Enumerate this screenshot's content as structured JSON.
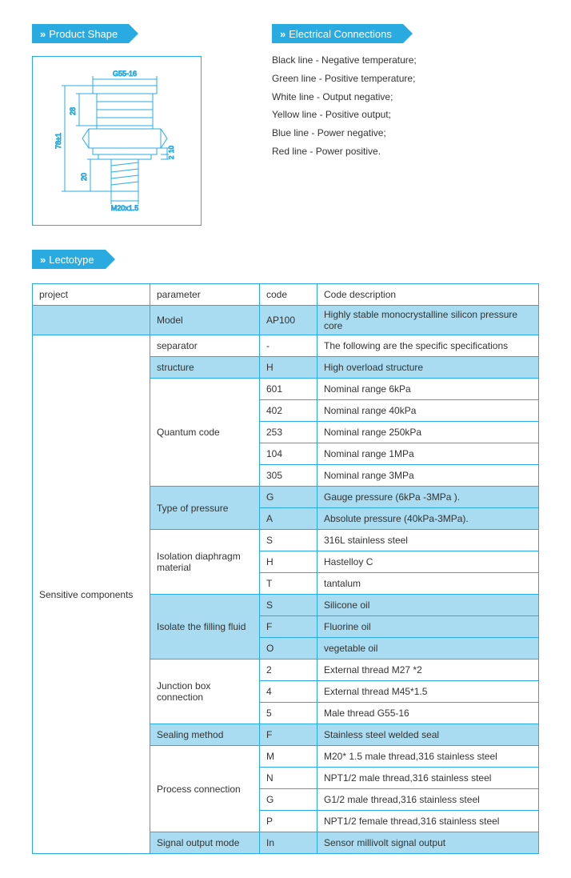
{
  "headers": {
    "productShape": "Product Shape",
    "electricalConnections": "Electrical Connections",
    "lectotype": "Lectotype"
  },
  "connections": [
    "Black line - Negative temperature;",
    "Green line - Positive temperature;",
    "White line - Output negative;",
    "Yellow line - Positive output;",
    "Blue line - Power negative;",
    "Red line - Power positive."
  ],
  "sketch": {
    "topLabel": "G55-16",
    "leftOuter": "78±1",
    "leftInner": "28",
    "rightSmall1": "10",
    "rightSmall2": "2",
    "rightBottom": "20",
    "bottomLabel": "M20x1.5"
  },
  "tableHeader": {
    "project": "project",
    "parameter": "parameter",
    "code": "code",
    "description": "Code description"
  },
  "rows": [
    {
      "shaded": true,
      "project": "",
      "param": "Model",
      "code": "AP100",
      "desc": "Highly stable monocrystalline silicon pressure core"
    },
    {
      "project_start": true,
      "project": "Sensitive components",
      "project_rowspan": 22,
      "param": "separator",
      "code": "-",
      "desc": "The following are the specific specifications"
    },
    {
      "shaded": true,
      "param": "structure",
      "code": "H",
      "desc": "High overload structure"
    },
    {
      "param": "Quantum code",
      "param_rowspan": 5,
      "code": "601",
      "desc": "Nominal range 6kPa"
    },
    {
      "code": "402",
      "desc": "Nominal range 40kPa"
    },
    {
      "code": "253",
      "desc": "Nominal range 250kPa"
    },
    {
      "code": "104",
      "desc": "Nominal range 1MPa"
    },
    {
      "code": "305",
      "desc": "Nominal range 3MPa"
    },
    {
      "shaded": true,
      "param": "Type of pressure",
      "param_rowspan": 2,
      "code": "G",
      "desc": "Gauge pressure (6kPa -3MPa )."
    },
    {
      "shaded": true,
      "code": "A",
      "desc": "Absolute pressure (40kPa-3MPa)."
    },
    {
      "param": "Isolation diaphragm material",
      "param_rowspan": 3,
      "code": "S",
      "desc": "316L stainless steel"
    },
    {
      "code": "H",
      "desc": "Hastelloy C"
    },
    {
      "code": "T",
      "desc": "tantalum"
    },
    {
      "shaded": true,
      "param": "Isolate the filling fluid",
      "param_rowspan": 3,
      "code": "S",
      "desc": "Silicone oil"
    },
    {
      "shaded": true,
      "code": "F",
      "desc": "Fluorine oil"
    },
    {
      "shaded": true,
      "code": "O",
      "desc": "vegetable oil"
    },
    {
      "param": "Junction box connection",
      "param_rowspan": 3,
      "code": "2",
      "desc": "External thread M27 *2"
    },
    {
      "code": "4",
      "desc": "External thread M45*1.5"
    },
    {
      "code": "5",
      "desc": "Male thread G55-16"
    },
    {
      "shaded": true,
      "param": "Sealing method",
      "code": "F",
      "desc": "Stainless steel welded seal"
    },
    {
      "param": "Process connection",
      "param_rowspan": 4,
      "code": "M",
      "desc": "M20* 1.5 male thread,316 stainless steel"
    },
    {
      "code": "N",
      "desc": "NPT1/2 male thread,316 stainless steel"
    },
    {
      "code": "G",
      "desc": "G1/2 male thread,316 stainless steel"
    },
    {
      "code": "P",
      "desc": "NPT1/2 female thread,316 stainless steel"
    },
    {
      "shaded": true,
      "param": "Signal output mode",
      "code": "In",
      "desc": "Sensor millivolt signal output"
    }
  ]
}
